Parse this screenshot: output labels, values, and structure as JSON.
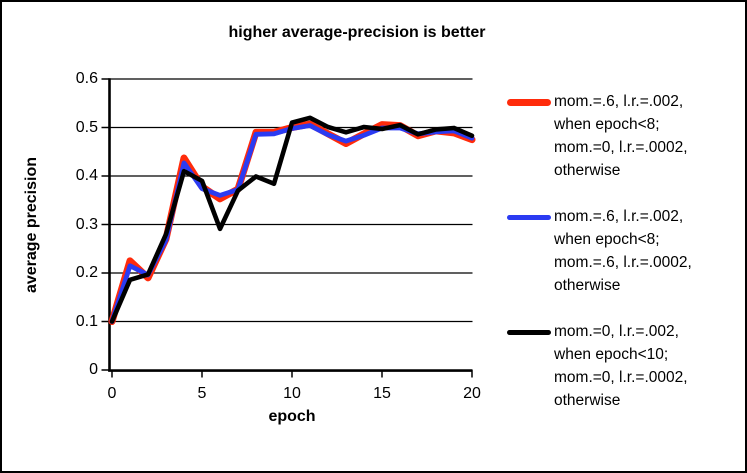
{
  "page": {
    "background": "#ffffff",
    "border_color": "#000000"
  },
  "chart_data": {
    "type": "line",
    "title": "higher average-precision is better",
    "xlabel": "epoch",
    "ylabel": "average precision",
    "xlim": [
      0,
      20
    ],
    "ylim": [
      0,
      0.6
    ],
    "x_ticks": [
      0,
      5,
      10,
      15,
      20
    ],
    "x_tick_labels": [
      "0",
      "5",
      "10",
      "15",
      "20"
    ],
    "y_ticks": [
      0,
      0.1,
      0.2,
      0.3,
      0.4,
      0.5,
      0.6
    ],
    "y_tick_labels": [
      "0",
      "0.1",
      "0.2",
      "0.3",
      "0.4",
      "0.5",
      "0.6"
    ],
    "grid": "horizontal",
    "legend_position": "right",
    "x": [
      0,
      1,
      2,
      3,
      4,
      5,
      6,
      7,
      8,
      9,
      10,
      11,
      12,
      13,
      14,
      15,
      16,
      17,
      18,
      19,
      20
    ],
    "series": [
      {
        "id": "red",
        "name": "mom.=.6, l.r.=.002, when epoch<8; mom.=0, l.r.=.0002, otherwise",
        "color": "#FF2B0B",
        "line_width": 7,
        "values": [
          0.1,
          0.225,
          0.19,
          0.27,
          0.437,
          0.378,
          0.353,
          0.373,
          0.49,
          0.49,
          0.5,
          0.507,
          0.487,
          0.467,
          0.487,
          0.506,
          0.504,
          0.483,
          0.493,
          0.489,
          0.475
        ]
      },
      {
        "id": "blue",
        "name": "mom.=.6, l.r.=.002, when epoch<8; mom.=.6, l.r.=.0002, otherwise",
        "color": "#2B3BF2",
        "line_width": 4.8,
        "values": [
          0.1,
          0.215,
          0.196,
          0.268,
          0.427,
          0.374,
          0.36,
          0.372,
          0.486,
          0.487,
          0.498,
          0.504,
          0.485,
          0.472,
          0.484,
          0.499,
          0.499,
          0.487,
          0.491,
          0.493,
          0.478
        ]
      },
      {
        "id": "black",
        "name": "mom.=0, l.r.=.002, when epoch<10; mom.=0, l.r.=.0002, otherwise",
        "color": "#000000",
        "line_width": 4.6,
        "values": [
          0.1,
          0.186,
          0.197,
          0.28,
          0.41,
          0.39,
          0.291,
          0.37,
          0.399,
          0.384,
          0.51,
          0.52,
          0.501,
          0.49,
          0.501,
          0.497,
          0.505,
          0.486,
          0.496,
          0.499,
          0.483
        ]
      }
    ]
  },
  "legend": {
    "entries": [
      {
        "id": "red",
        "lines": [
          "mom.=.6, l.r.=.002,",
          "when epoch<8;",
          "mom.=0, l.r.=.0002,",
          "otherwise"
        ]
      },
      {
        "id": "blue",
        "lines": [
          "mom.=.6, l.r.=.002,",
          "when epoch<8;",
          "mom.=.6, l.r.=.0002,",
          "otherwise"
        ]
      },
      {
        "id": "black",
        "lines": [
          "mom.=0, l.r.=.002,",
          "when epoch<10;",
          "mom.=0, l.r.=.0002,",
          "otherwise"
        ]
      }
    ]
  }
}
